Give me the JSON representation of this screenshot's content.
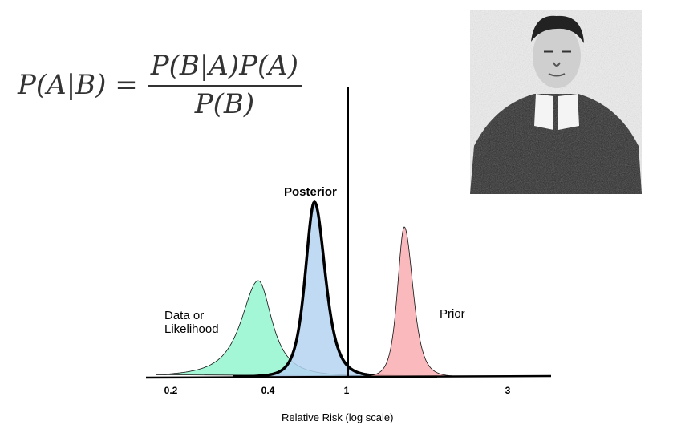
{
  "formula": {
    "lhs": "P(A|B) =",
    "numerator": "P(B|A)P(A)",
    "denominator": "P(B)"
  },
  "labels": {
    "posterior": "Posterior",
    "likelihood_line1": "Data or",
    "likelihood_line2": "Likelihood",
    "prior": "Prior"
  },
  "axis": {
    "xlabel": "Relative Risk (log scale)",
    "ticks": [
      "0.2",
      "0.4",
      "1",
      "3"
    ]
  },
  "colors": {
    "likelihood": "#9ff7d4",
    "posterior": "#b5d3f2",
    "prior": "#f9b3b6",
    "overlap": "#66e0c8"
  },
  "portrait": {
    "icon": "portrait-engraving"
  }
}
